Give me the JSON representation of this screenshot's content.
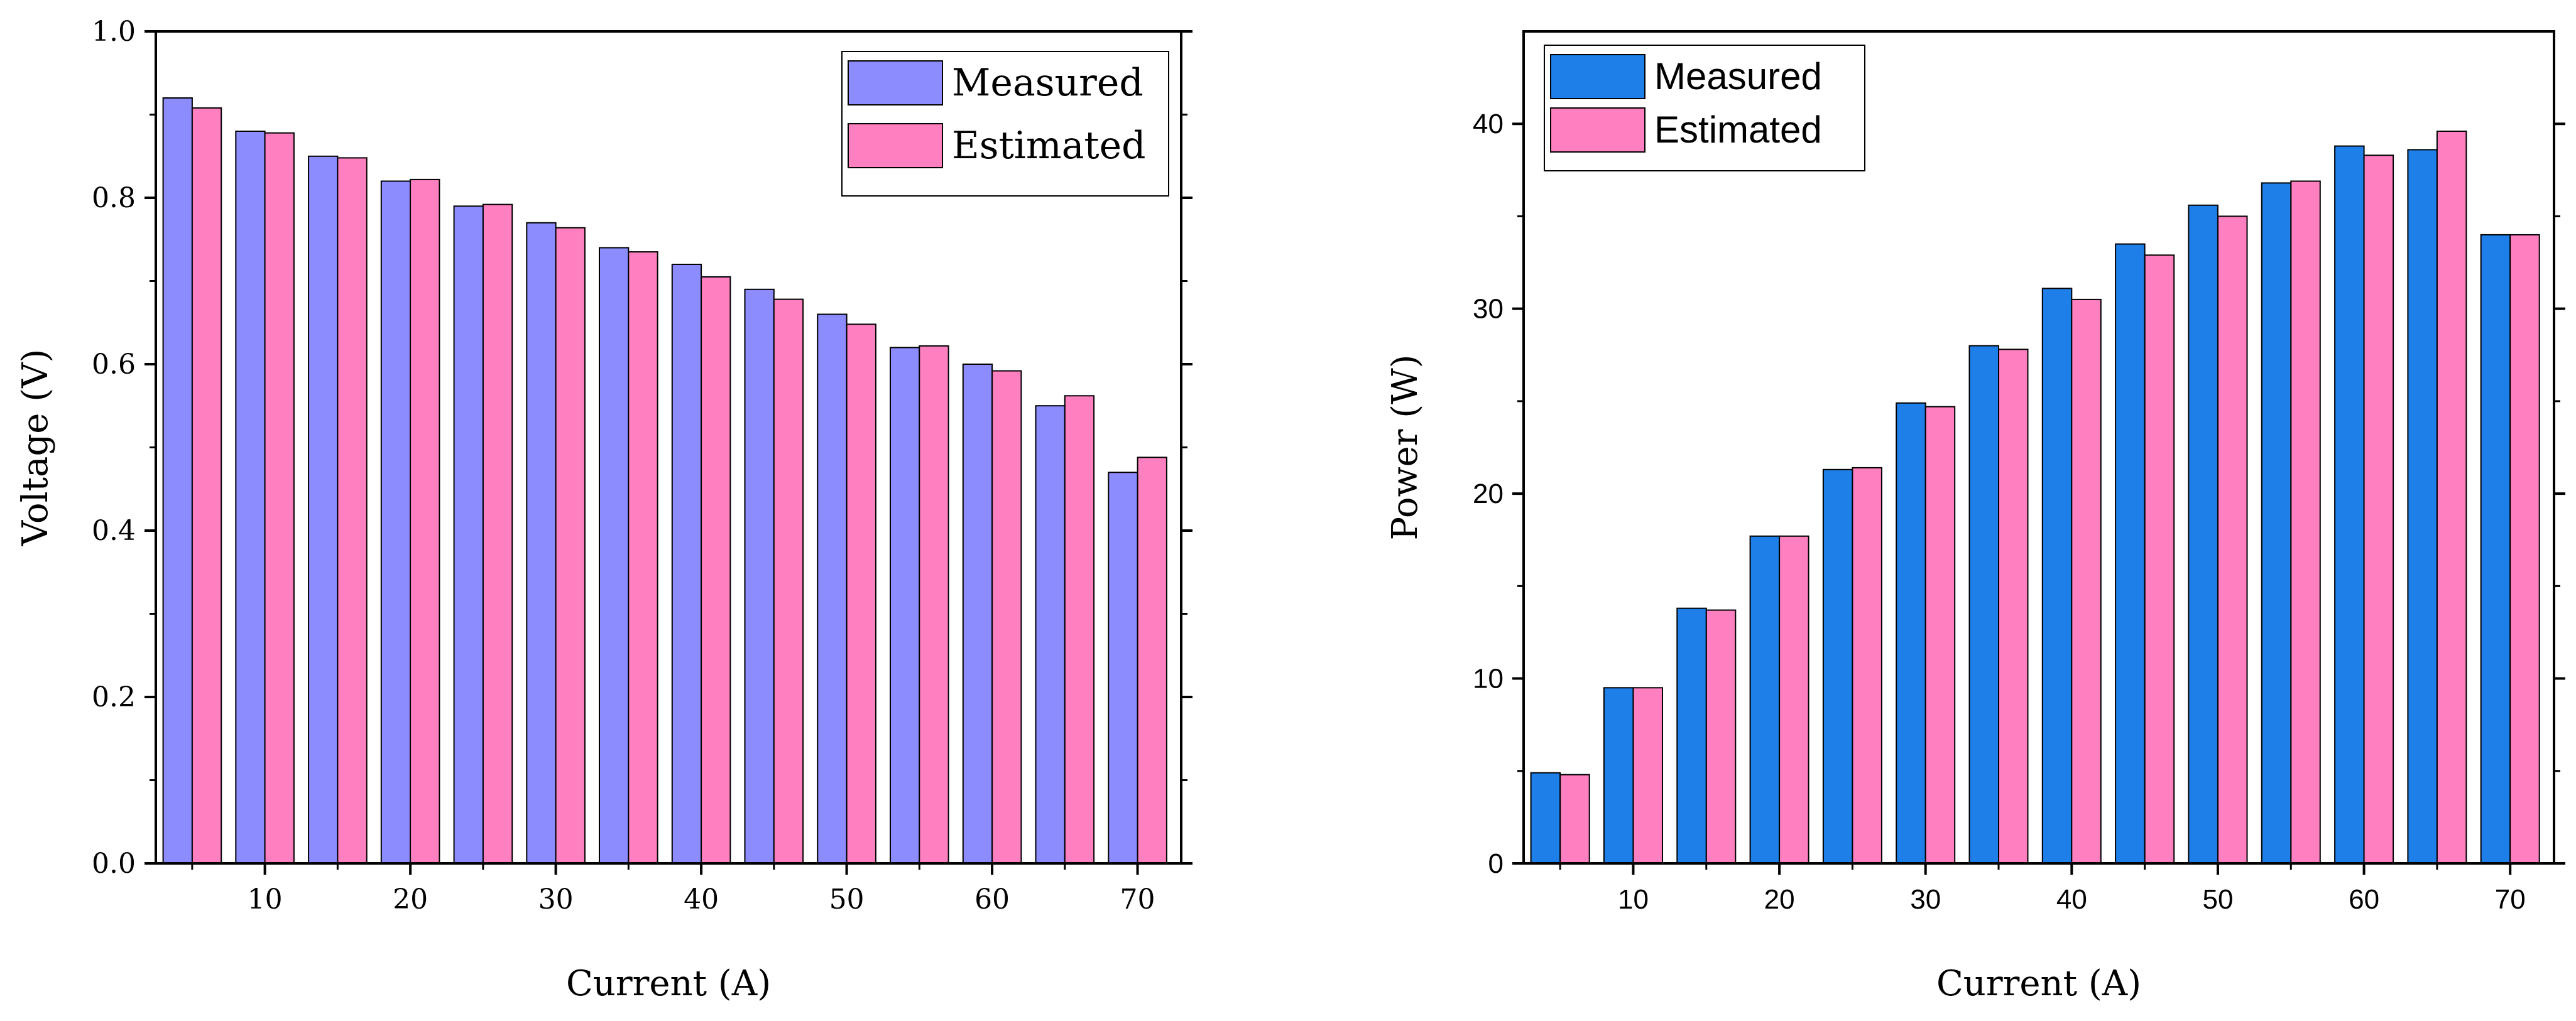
{
  "chart_data": [
    {
      "type": "bar",
      "xlabel": "Current (A)",
      "ylabel": "Voltage (V)",
      "xlim": [
        2.5,
        73
      ],
      "ylim": [
        0,
        1.0
      ],
      "x_ticks": [
        10,
        20,
        30,
        40,
        50,
        60,
        70
      ],
      "y_ticks": [
        0.0,
        0.2,
        0.4,
        0.6,
        0.8,
        1.0
      ],
      "y_tick_labels": [
        "0.0",
        "0.2",
        "0.4",
        "0.6",
        "0.8",
        "1.0"
      ],
      "categories": [
        5,
        10,
        15,
        20,
        25,
        30,
        35,
        40,
        45,
        50,
        55,
        60,
        65,
        70
      ],
      "series": [
        {
          "name": "Measured",
          "color": "#8c8cff",
          "values": [
            0.92,
            0.88,
            0.85,
            0.82,
            0.79,
            0.77,
            0.74,
            0.72,
            0.69,
            0.66,
            0.62,
            0.6,
            0.55,
            0.47
          ]
        },
        {
          "name": "Estimated",
          "color": "#ff80c0",
          "values": [
            0.908,
            0.878,
            0.848,
            0.822,
            0.792,
            0.764,
            0.735,
            0.705,
            0.678,
            0.648,
            0.622,
            0.592,
            0.562,
            0.488
          ]
        }
      ],
      "legend_position": "top-right",
      "grid": false
    },
    {
      "type": "bar",
      "xlabel": "Current (A)",
      "ylabel": "Power (W)",
      "xlim": [
        2.5,
        73
      ],
      "ylim": [
        0,
        45
      ],
      "x_ticks": [
        10,
        20,
        30,
        40,
        50,
        60,
        70
      ],
      "y_ticks": [
        0,
        10,
        20,
        30,
        40
      ],
      "y_tick_labels": [
        "0",
        "10",
        "20",
        "30",
        "40"
      ],
      "categories": [
        5,
        10,
        15,
        20,
        25,
        30,
        35,
        40,
        45,
        50,
        55,
        60,
        65,
        70
      ],
      "series": [
        {
          "name": "Measured",
          "color": "#1f7fe8",
          "values": [
            4.9,
            9.5,
            13.8,
            17.7,
            21.3,
            24.9,
            28.0,
            31.1,
            33.5,
            35.6,
            36.8,
            38.8,
            38.6,
            34.0
          ]
        },
        {
          "name": "Estimated",
          "color": "#ff80c0",
          "values": [
            4.8,
            9.5,
            13.7,
            17.7,
            21.4,
            24.7,
            27.8,
            30.5,
            32.9,
            35.0,
            36.9,
            38.3,
            39.6,
            34.0
          ]
        }
      ],
      "legend_position": "top-left",
      "grid": false
    }
  ]
}
